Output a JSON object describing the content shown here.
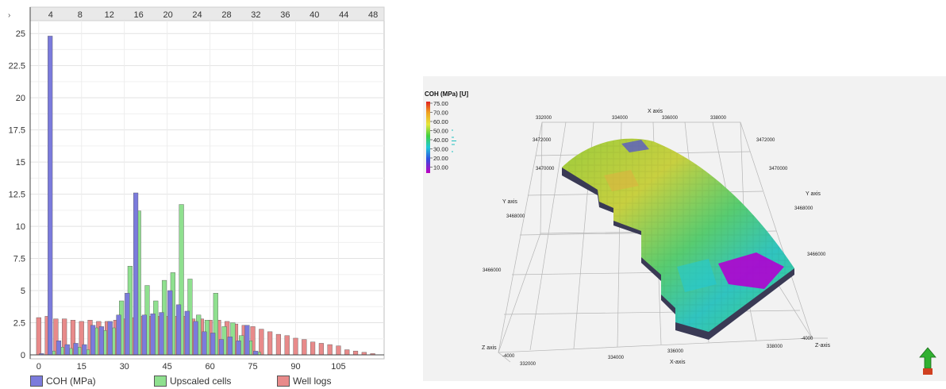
{
  "chart_data": [
    {
      "type": "bar",
      "top_axis_ticks": [
        "4",
        "8",
        "12",
        "16",
        "20",
        "24",
        "28",
        "32",
        "36",
        "40",
        "44",
        "48"
      ],
      "y_ticks": [
        "0",
        "2.5",
        "5",
        "7.5",
        "10",
        "12.5",
        "15",
        "17.5",
        "20",
        "22.5",
        "25"
      ],
      "x_ticks": [
        "0",
        "15",
        "30",
        "45",
        "60",
        "75",
        "90",
        "105"
      ],
      "ylim": [
        0,
        26
      ],
      "xlim": [
        -3,
        121
      ],
      "grid": true,
      "legend_position": "bottom",
      "series": [
        {
          "name": "COH (MPa)",
          "color": "#7b7bdc",
          "x": [
            1,
            4,
            7,
            10,
            13,
            16,
            19,
            22,
            25,
            28,
            31,
            34,
            37,
            40,
            43,
            46,
            49,
            52,
            55,
            58,
            61,
            64,
            67,
            70,
            73,
            76
          ],
          "values": [
            0.1,
            24.8,
            1.1,
            0.8,
            0.9,
            0.8,
            2.3,
            2.2,
            2.6,
            3.1,
            4.8,
            12.6,
            3.1,
            3.2,
            3.3,
            5.0,
            3.9,
            3.4,
            2.6,
            1.8,
            1.7,
            1.2,
            1.4,
            1.1,
            2.3,
            0.3
          ]
        },
        {
          "name": "Upscaled cells",
          "color": "#8fe08f",
          "x": [
            2,
            5,
            8,
            11,
            14,
            17,
            20,
            23,
            26,
            29,
            32,
            35,
            38,
            41,
            44,
            47,
            50,
            53,
            56,
            59,
            62,
            65,
            68,
            71,
            74,
            77
          ],
          "values": [
            0,
            0.3,
            0.6,
            0.5,
            0.6,
            0.4,
            2.1,
            1.9,
            2.1,
            4.2,
            6.9,
            11.2,
            5.4,
            4.2,
            5.8,
            6.4,
            11.7,
            5.9,
            3.1,
            2.7,
            4.8,
            2.2,
            2.5,
            1.5,
            1.1,
            0.2
          ]
        },
        {
          "name": "Well logs",
          "color": "#e88a8a",
          "x": [
            0,
            3,
            6,
            9,
            12,
            15,
            18,
            21,
            24,
            27,
            30,
            33,
            36,
            39,
            42,
            45,
            48,
            51,
            54,
            57,
            60,
            63,
            66,
            69,
            72,
            75,
            78,
            81,
            84,
            87,
            90,
            93,
            96,
            99,
            102,
            105,
            108,
            111,
            114,
            117
          ],
          "values": [
            2.9,
            3.0,
            2.8,
            2.8,
            2.7,
            2.6,
            2.7,
            2.6,
            2.6,
            2.7,
            2.8,
            2.9,
            3.0,
            3.0,
            3.0,
            3.0,
            3.0,
            3.0,
            2.8,
            2.8,
            2.7,
            2.7,
            2.6,
            2.4,
            2.3,
            2.2,
            2.0,
            1.8,
            1.6,
            1.5,
            1.3,
            1.2,
            1.0,
            0.9,
            0.8,
            0.7,
            0.4,
            0.3,
            0.2,
            0.1
          ]
        }
      ]
    },
    {
      "type": "heatmap",
      "title": "COH (MPa) [U]",
      "colorbar_ticks": [
        "75.00",
        "70.00",
        "60.00",
        "50.00",
        "40.00",
        "30.00",
        "20.00",
        "10.00"
      ],
      "x_axis_name": "X-axis",
      "x_ticks_top": [
        "332000",
        "334000",
        "336000",
        "338000"
      ],
      "x_ticks_bottom": [
        "332000",
        "334000",
        "336000",
        "338000"
      ],
      "y_axis_name": "Y axis",
      "y_ticks_left": [
        "3472000",
        "3470000",
        "3468000",
        "3466000"
      ],
      "y_ticks_right": [
        "3472000",
        "3470000",
        "3468000",
        "3466000"
      ],
      "z_axis_name": "Z axis",
      "z_ticks": [
        "-4000",
        "-4000"
      ]
    }
  ],
  "chart_left": {
    "legend": [
      {
        "label": "COH (MPa)",
        "color": "#7b7bdc"
      },
      {
        "label": "Upscaled cells",
        "color": "#8fe08f"
      },
      {
        "label": "Well logs",
        "color": "#e88a8a"
      }
    ]
  },
  "chart_right": {
    "colorbar_title": "COH (MPa) [U]",
    "x_label_top": "X axis",
    "x_label_bottom": "X-axis",
    "y_label_left": "Y axis",
    "y_label_right": "Y axis",
    "z_label_left": "Z axis",
    "z_label_right": "Z-axis",
    "nav_icon": "up-arrow-icon",
    "colors": {
      "magenta": "#c000c0",
      "cyan": "#22c7c7",
      "green": "#38c850",
      "yellow": "#d8d43a",
      "orange": "#e39030",
      "red": "#e03020"
    }
  }
}
